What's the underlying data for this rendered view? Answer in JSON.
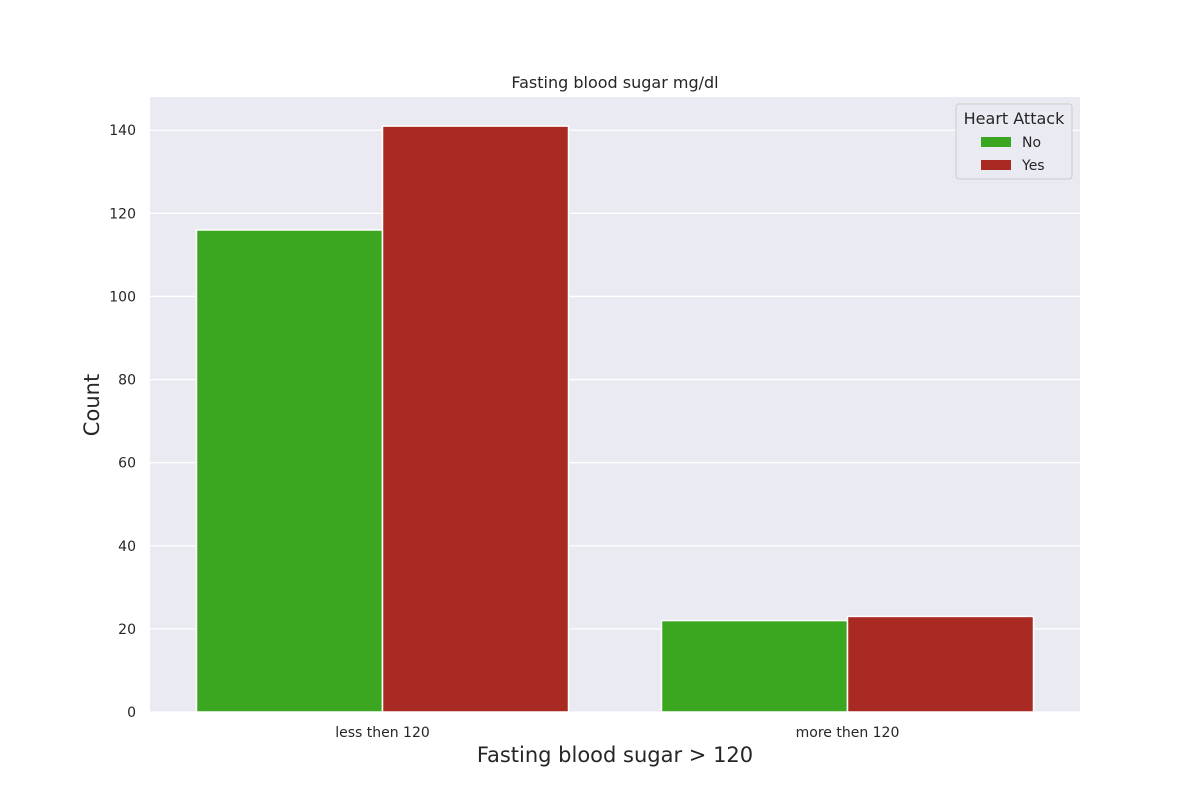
{
  "chart_data": {
    "type": "bar",
    "title": "Fasting blood sugar mg/dl",
    "xlabel": "Fasting blood sugar > 120",
    "ylabel": "Count",
    "categories": [
      "less then 120",
      "more then 120"
    ],
    "series": [
      {
        "name": "No",
        "values": [
          116,
          22
        ],
        "color": "#3ba620"
      },
      {
        "name": "Yes",
        "values": [
          141,
          23
        ],
        "color": "#a82a22"
      }
    ],
    "ylim": [
      0,
      148
    ],
    "yticks": [
      0,
      20,
      40,
      60,
      80,
      100,
      120,
      140
    ],
    "grid": true,
    "legend": {
      "title": "Heart Attack",
      "placement": "top-right"
    },
    "background_color": "#eaeaf2"
  }
}
